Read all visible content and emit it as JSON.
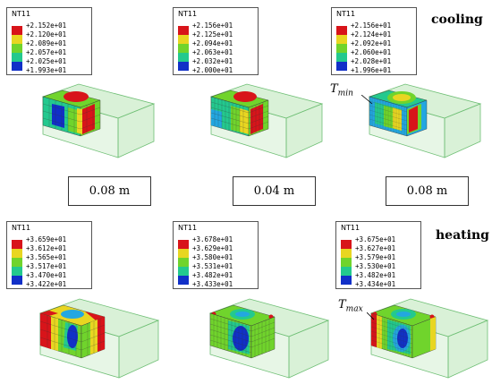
{
  "colors": {
    "contour": [
      "#d8141a",
      "#e8d621",
      "#70d42c",
      "#23c98e",
      "#23a7e0",
      "#1130c8"
    ],
    "box": "#b9e6b7",
    "box_edge": "#6fbf75"
  },
  "cooling": {
    "label": "cooling",
    "panels": [
      {
        "legend_title": "NT11",
        "values": [
          "+2.152e+01",
          "+2.120e+01",
          "+2.089e+01",
          "+2.057e+01",
          "+2.025e+01",
          "+1.993e+01"
        ]
      },
      {
        "legend_title": "NT11",
        "values": [
          "+2.156e+01",
          "+2.125e+01",
          "+2.094e+01",
          "+2.063e+01",
          "+2.032e+01",
          "+2.000e+01"
        ]
      },
      {
        "legend_title": "NT11",
        "values": [
          "+2.156e+01",
          "+2.124e+01",
          "+2.092e+01",
          "+2.060e+01",
          "+2.028e+01",
          "+1.996e+01"
        ]
      }
    ],
    "marker": {
      "symbol": "T",
      "sub": "min"
    }
  },
  "sizes": [
    "0.08 m",
    "0.04 m",
    "0.08 m"
  ],
  "heating": {
    "label": "heating",
    "panels": [
      {
        "legend_title": "NT11",
        "values": [
          "+3.659e+01",
          "+3.612e+01",
          "+3.565e+01",
          "+3.517e+01",
          "+3.470e+01",
          "+3.422e+01"
        ]
      },
      {
        "legend_title": "NT11",
        "values": [
          "+3.678e+01",
          "+3.629e+01",
          "+3.580e+01",
          "+3.531e+01",
          "+3.482e+01",
          "+3.433e+01"
        ]
      },
      {
        "legend_title": "NT11",
        "values": [
          "+3.675e+01",
          "+3.627e+01",
          "+3.579e+01",
          "+3.530e+01",
          "+3.482e+01",
          "+3.434e+01"
        ]
      }
    ],
    "marker": {
      "symbol": "T",
      "sub": "max"
    }
  }
}
